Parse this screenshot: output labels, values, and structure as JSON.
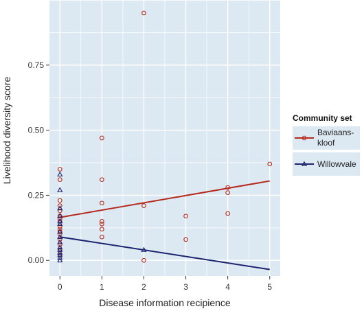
{
  "chart_data": {
    "type": "scatter",
    "xlabel": "Disease information recipience",
    "ylabel": "Livelihood diversity score",
    "xlim": [
      -0.25,
      5.25
    ],
    "ylim": [
      -0.06,
      1.0
    ],
    "x_ticks": [
      0,
      1,
      2,
      3,
      4,
      5
    ],
    "x_tick_labels": [
      "0",
      "1",
      "2",
      "3",
      "4",
      "5"
    ],
    "y_ticks": [
      0.0,
      0.25,
      0.5,
      0.75
    ],
    "y_tick_labels": [
      "0.00",
      "0.25",
      "0.50",
      "0.75"
    ],
    "grid": true,
    "legend": {
      "title": "Community set",
      "position": "right"
    },
    "series": [
      {
        "name": "Baviaans-kloof",
        "label_lines": [
          "Baviaans-",
          "kloof"
        ],
        "marker": "circle",
        "color": "#b52a1c",
        "points": [
          {
            "x": 0,
            "y": 0.35
          },
          {
            "x": 0,
            "y": 0.31
          },
          {
            "x": 0,
            "y": 0.23
          },
          {
            "x": 0,
            "y": 0.21
          },
          {
            "x": 0,
            "y": 0.19
          },
          {
            "x": 0,
            "y": 0.17
          },
          {
            "x": 0,
            "y": 0.16
          },
          {
            "x": 0,
            "y": 0.15
          },
          {
            "x": 0,
            "y": 0.13
          },
          {
            "x": 0,
            "y": 0.12
          },
          {
            "x": 0,
            "y": 0.11
          },
          {
            "x": 0,
            "y": 0.1
          },
          {
            "x": 0,
            "y": 0.08
          },
          {
            "x": 0,
            "y": 0.06
          },
          {
            "x": 0,
            "y": 0.04
          },
          {
            "x": 0,
            "y": 0.02
          },
          {
            "x": 1,
            "y": 0.47
          },
          {
            "x": 1,
            "y": 0.31
          },
          {
            "x": 1,
            "y": 0.22
          },
          {
            "x": 1,
            "y": 0.15
          },
          {
            "x": 1,
            "y": 0.14
          },
          {
            "x": 1,
            "y": 0.12
          },
          {
            "x": 1,
            "y": 0.09
          },
          {
            "x": 2,
            "y": 0.95
          },
          {
            "x": 2,
            "y": 0.21
          },
          {
            "x": 2,
            "y": 0.0
          },
          {
            "x": 3,
            "y": 0.17
          },
          {
            "x": 3,
            "y": 0.08
          },
          {
            "x": 4,
            "y": 0.28
          },
          {
            "x": 4,
            "y": 0.26
          },
          {
            "x": 4,
            "y": 0.18
          },
          {
            "x": 5,
            "y": 0.37
          }
        ],
        "trend": {
          "x0": 0,
          "y0": 0.165,
          "x1": 5,
          "y1": 0.305
        }
      },
      {
        "name": "Willowvale",
        "label_lines": [
          "Willowvale"
        ],
        "marker": "triangle",
        "color": "#1c2470",
        "points": [
          {
            "x": 0,
            "y": 0.33
          },
          {
            "x": 0,
            "y": 0.27
          },
          {
            "x": 0,
            "y": 0.2
          },
          {
            "x": 0,
            "y": 0.17
          },
          {
            "x": 0,
            "y": 0.15
          },
          {
            "x": 0,
            "y": 0.14
          },
          {
            "x": 0,
            "y": 0.11
          },
          {
            "x": 0,
            "y": 0.09
          },
          {
            "x": 0,
            "y": 0.07
          },
          {
            "x": 0,
            "y": 0.05
          },
          {
            "x": 0,
            "y": 0.04
          },
          {
            "x": 0,
            "y": 0.03
          },
          {
            "x": 0,
            "y": 0.02
          },
          {
            "x": 0,
            "y": 0.01
          },
          {
            "x": 0,
            "y": 0.0
          },
          {
            "x": 2,
            "y": 0.04
          }
        ],
        "trend": {
          "x0": 0,
          "y0": 0.09,
          "x1": 5,
          "y1": -0.035
        }
      }
    ]
  }
}
